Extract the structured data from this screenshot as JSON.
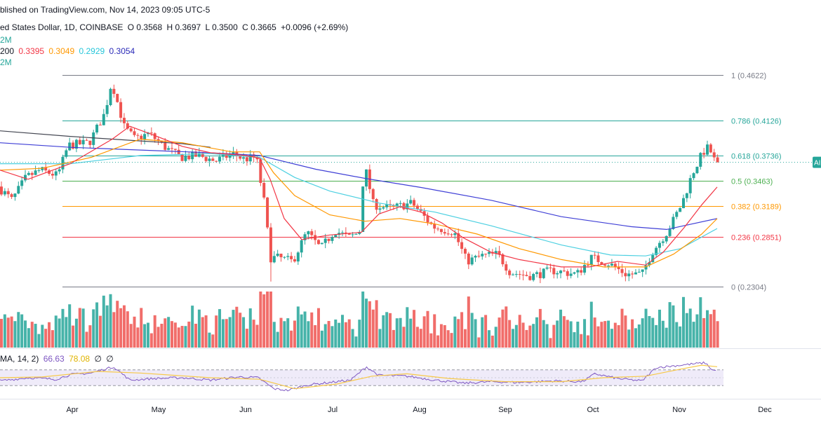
{
  "header": {
    "published": "blished on TradingView.com, Nov 14, 2023 09:05 UTC-5",
    "symbol": "ed States Dollar, 1D, COINBASE",
    "o": "O 0.3568",
    "h": "H 0.3697",
    "l": "L 0.3500",
    "c": "C 0.3665",
    "change": "+0.0096 (+2.69%)",
    "vol_line": "2M",
    "ma_prefix": "200",
    "ma1": "0.3395",
    "ma2": "0.3049",
    "ma3": "0.2929",
    "ma4": "0.3054",
    "vol_line2": "2M"
  },
  "rsi_header": {
    "prefix": "MA, 14, 2)",
    "rsi": "66.63",
    "ma": "78.08",
    "na1": "∅",
    "na2": "∅"
  },
  "price_label_right": "AI",
  "colors": {
    "up": "#26a69a",
    "down": "#ef5350",
    "ma_red": "#f23645",
    "ma_orange": "#ff9800",
    "ma_cyan": "#4dd0e1",
    "ma_blue": "#3f3fd6",
    "ma_dark": "#434651",
    "rsi": "#7e57c2",
    "rsi_ma": "#f7c948",
    "rsi_band": "#e8e2f7"
  },
  "chart_data": {
    "type": "candlestick",
    "price_scale": {
      "top": 0.4622,
      "bottom": 0.2304
    },
    "fibonacci": [
      {
        "label": "1 (0.4622)",
        "value": 0.4622,
        "color": "#787b86"
      },
      {
        "label": "0.786 (0.4126)",
        "value": 0.4126,
        "color": "#26a69a"
      },
      {
        "label": "0.618 (0.3736)",
        "value": 0.3736,
        "color": "#26a69a"
      },
      {
        "label": "0.5 (0.3463)",
        "value": 0.3463,
        "color": "#4caf50"
      },
      {
        "label": "0.382 (0.3189)",
        "value": 0.3189,
        "color": "#ff9800"
      },
      {
        "label": "0.236 (0.2851)",
        "value": 0.2851,
        "color": "#f23645"
      },
      {
        "label": "0 (0.2304)",
        "value": 0.2304,
        "color": "#787b86"
      }
    ],
    "months": [
      "Apr",
      "May",
      "Jun",
      "Jul",
      "Aug",
      "Sep",
      "Oct",
      "Nov",
      "Dec"
    ],
    "anchors": [
      {
        "x": 0,
        "p": 0.34
      },
      {
        "x": 20,
        "p": 0.325
      },
      {
        "x": 40,
        "p": 0.35
      },
      {
        "x": 60,
        "p": 0.358
      },
      {
        "x": 85,
        "p": 0.352
      },
      {
        "x": 100,
        "p": 0.385
      },
      {
        "x": 130,
        "p": 0.388
      },
      {
        "x": 152,
        "p": 0.42
      },
      {
        "x": 162,
        "p": 0.455
      },
      {
        "x": 180,
        "p": 0.405
      },
      {
        "x": 195,
        "p": 0.392
      },
      {
        "x": 215,
        "p": 0.398
      },
      {
        "x": 240,
        "p": 0.382
      },
      {
        "x": 260,
        "p": 0.372
      },
      {
        "x": 285,
        "p": 0.374
      },
      {
        "x": 310,
        "p": 0.368
      },
      {
        "x": 335,
        "p": 0.376
      },
      {
        "x": 350,
        "p": 0.37
      },
      {
        "x": 368,
        "p": 0.372
      },
      {
        "x": 380,
        "p": 0.32
      },
      {
        "x": 388,
        "p": 0.262
      },
      {
        "x": 400,
        "p": 0.262
      },
      {
        "x": 420,
        "p": 0.258
      },
      {
        "x": 440,
        "p": 0.29
      },
      {
        "x": 460,
        "p": 0.272
      },
      {
        "x": 480,
        "p": 0.292
      },
      {
        "x": 500,
        "p": 0.284
      },
      {
        "x": 515,
        "p": 0.29
      },
      {
        "x": 522,
        "p": 0.365
      },
      {
        "x": 535,
        "p": 0.32
      },
      {
        "x": 560,
        "p": 0.316
      },
      {
        "x": 590,
        "p": 0.322
      },
      {
        "x": 620,
        "p": 0.296
      },
      {
        "x": 650,
        "p": 0.29
      },
      {
        "x": 668,
        "p": 0.258
      },
      {
        "x": 690,
        "p": 0.264
      },
      {
        "x": 712,
        "p": 0.266
      },
      {
        "x": 730,
        "p": 0.246
      },
      {
        "x": 760,
        "p": 0.242
      },
      {
        "x": 790,
        "p": 0.248
      },
      {
        "x": 825,
        "p": 0.244
      },
      {
        "x": 845,
        "p": 0.262
      },
      {
        "x": 870,
        "p": 0.256
      },
      {
        "x": 895,
        "p": 0.244
      },
      {
        "x": 918,
        "p": 0.244
      },
      {
        "x": 932,
        "p": 0.268
      },
      {
        "x": 955,
        "p": 0.292
      },
      {
        "x": 975,
        "p": 0.322
      },
      {
        "x": 990,
        "p": 0.355
      },
      {
        "x": 1005,
        "p": 0.378
      },
      {
        "x": 1013,
        "p": 0.383
      },
      {
        "x": 1022,
        "p": 0.3665
      }
    ],
    "ma_lines": [
      {
        "color": "#434651",
        "pts": [
          [
            0,
            0.401
          ],
          [
            100,
            0.395
          ],
          [
            200,
            0.39
          ],
          [
            260,
            0.387
          ],
          [
            300,
            0.383
          ]
        ]
      },
      {
        "color": "#3f3fd6",
        "pts": [
          [
            0,
            0.388
          ],
          [
            100,
            0.383
          ],
          [
            200,
            0.38
          ],
          [
            300,
            0.377
          ],
          [
            370,
            0.374
          ],
          [
            450,
            0.359
          ],
          [
            520,
            0.349
          ],
          [
            600,
            0.339
          ],
          [
            700,
            0.325
          ],
          [
            800,
            0.307
          ],
          [
            900,
            0.296
          ],
          [
            950,
            0.293
          ],
          [
            1022,
            0.305
          ]
        ]
      },
      {
        "color": "#4dd0e1",
        "pts": [
          [
            0,
            0.365
          ],
          [
            100,
            0.365
          ],
          [
            200,
            0.374
          ],
          [
            300,
            0.376
          ],
          [
            370,
            0.372
          ],
          [
            420,
            0.35
          ],
          [
            470,
            0.335
          ],
          [
            540,
            0.322
          ],
          [
            620,
            0.312
          ],
          [
            700,
            0.297
          ],
          [
            800,
            0.276
          ],
          [
            870,
            0.265
          ],
          [
            920,
            0.264
          ],
          [
            970,
            0.272
          ],
          [
            1022,
            0.294
          ]
        ]
      },
      {
        "color": "#ff9800",
        "pts": [
          [
            0,
            0.358
          ],
          [
            60,
            0.36
          ],
          [
            130,
            0.372
          ],
          [
            200,
            0.392
          ],
          [
            260,
            0.388
          ],
          [
            330,
            0.378
          ],
          [
            370,
            0.378
          ],
          [
            390,
            0.355
          ],
          [
            420,
            0.33
          ],
          [
            470,
            0.309
          ],
          [
            520,
            0.302
          ],
          [
            570,
            0.305
          ],
          [
            620,
            0.299
          ],
          [
            680,
            0.288
          ],
          [
            740,
            0.272
          ],
          [
            800,
            0.26
          ],
          [
            860,
            0.252
          ],
          [
            920,
            0.252
          ],
          [
            960,
            0.266
          ],
          [
            1000,
            0.288
          ],
          [
            1022,
            0.3049
          ]
        ]
      },
      {
        "color": "#f23645",
        "pts": [
          [
            0,
            0.358
          ],
          [
            40,
            0.348
          ],
          [
            100,
            0.365
          ],
          [
            160,
            0.392
          ],
          [
            185,
            0.406
          ],
          [
            220,
            0.396
          ],
          [
            260,
            0.384
          ],
          [
            300,
            0.377
          ],
          [
            350,
            0.374
          ],
          [
            370,
            0.371
          ],
          [
            385,
            0.348
          ],
          [
            405,
            0.305
          ],
          [
            430,
            0.282
          ],
          [
            470,
            0.287
          ],
          [
            515,
            0.29
          ],
          [
            540,
            0.31
          ],
          [
            570,
            0.318
          ],
          [
            600,
            0.312
          ],
          [
            630,
            0.3
          ],
          [
            660,
            0.284
          ],
          [
            700,
            0.268
          ],
          [
            740,
            0.26
          ],
          [
            800,
            0.252
          ],
          [
            840,
            0.252
          ],
          [
            880,
            0.258
          ],
          [
            920,
            0.254
          ],
          [
            945,
            0.268
          ],
          [
            975,
            0.295
          ],
          [
            1000,
            0.32
          ],
          [
            1022,
            0.3395
          ]
        ]
      }
    ],
    "rsi": {
      "value": 66.63,
      "ma": 78.08,
      "anchors": [
        {
          "x": 0,
          "v": 42
        },
        {
          "x": 40,
          "v": 50
        },
        {
          "x": 80,
          "v": 46
        },
        {
          "x": 100,
          "v": 58
        },
        {
          "x": 130,
          "v": 62
        },
        {
          "x": 162,
          "v": 78
        },
        {
          "x": 185,
          "v": 44
        },
        {
          "x": 220,
          "v": 48
        },
        {
          "x": 260,
          "v": 50
        },
        {
          "x": 300,
          "v": 44
        },
        {
          "x": 340,
          "v": 52
        },
        {
          "x": 368,
          "v": 50
        },
        {
          "x": 390,
          "v": 22
        },
        {
          "x": 410,
          "v": 18
        },
        {
          "x": 440,
          "v": 32
        },
        {
          "x": 470,
          "v": 38
        },
        {
          "x": 500,
          "v": 44
        },
        {
          "x": 522,
          "v": 78
        },
        {
          "x": 540,
          "v": 56
        },
        {
          "x": 580,
          "v": 54
        },
        {
          "x": 620,
          "v": 44
        },
        {
          "x": 660,
          "v": 36
        },
        {
          "x": 700,
          "v": 40
        },
        {
          "x": 740,
          "v": 38
        },
        {
          "x": 790,
          "v": 42
        },
        {
          "x": 830,
          "v": 40
        },
        {
          "x": 848,
          "v": 60
        },
        {
          "x": 880,
          "v": 48
        },
        {
          "x": 915,
          "v": 42
        },
        {
          "x": 935,
          "v": 76
        },
        {
          "x": 970,
          "v": 82
        },
        {
          "x": 1005,
          "v": 88
        },
        {
          "x": 1015,
          "v": 70
        },
        {
          "x": 1022,
          "v": 66.63
        }
      ],
      "ma_anchors": [
        {
          "x": 0,
          "v": 50
        },
        {
          "x": 60,
          "v": 52
        },
        {
          "x": 140,
          "v": 66
        },
        {
          "x": 200,
          "v": 62
        },
        {
          "x": 300,
          "v": 50
        },
        {
          "x": 370,
          "v": 46
        },
        {
          "x": 420,
          "v": 22
        },
        {
          "x": 480,
          "v": 34
        },
        {
          "x": 530,
          "v": 54
        },
        {
          "x": 580,
          "v": 60
        },
        {
          "x": 640,
          "v": 48
        },
        {
          "x": 720,
          "v": 40
        },
        {
          "x": 800,
          "v": 40
        },
        {
          "x": 860,
          "v": 50
        },
        {
          "x": 920,
          "v": 54
        },
        {
          "x": 970,
          "v": 72
        },
        {
          "x": 1000,
          "v": 82
        },
        {
          "x": 1022,
          "v": 78.08
        }
      ],
      "band": [
        30,
        70
      ]
    }
  }
}
